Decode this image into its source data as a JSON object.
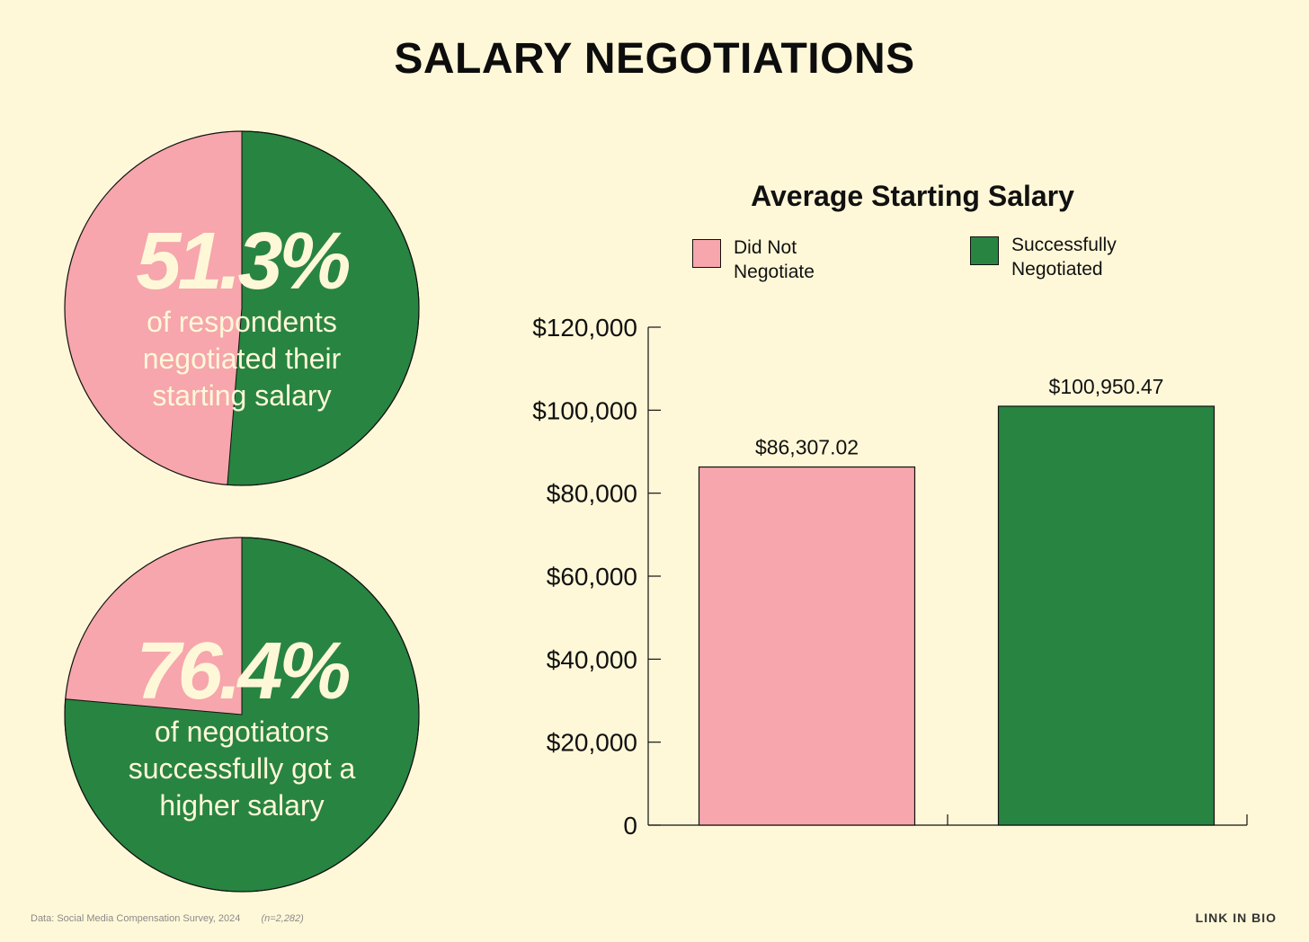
{
  "title": "SALARY NEGOTIATIONS",
  "colors": {
    "background": "#FFF8D8",
    "pink": "#F6A6AC",
    "green": "#288441",
    "text_on_pie": "#FFF8D8"
  },
  "pies": [
    {
      "big": "51.3%",
      "caption_lines": [
        "of respondents",
        "negotiated their",
        "starting salary"
      ],
      "green_share": 0.513
    },
    {
      "big": "76.4%",
      "caption_lines": [
        "of negotiators",
        "successfully got a",
        "higher salary"
      ],
      "green_share": 0.764
    }
  ],
  "legend": {
    "did_not": "Did Not Negotiate",
    "negotiated": "Successfully Negotiated"
  },
  "chart_data": {
    "type": "bar",
    "title": "Average Starting Salary",
    "categories": [
      "Did Not Negotiate",
      "Successfully Negotiated"
    ],
    "values": [
      86307.02,
      100950.47
    ],
    "value_labels": [
      "$86,307.02",
      "$100,950.47"
    ],
    "colors": [
      "#F6A6AC",
      "#288441"
    ],
    "ylim": [
      0,
      120000
    ],
    "yticks": [
      0,
      20000,
      40000,
      60000,
      80000,
      100000,
      120000
    ],
    "ytick_labels": [
      "0",
      "$20,000",
      "$40,000",
      "$60,000",
      "$80,000",
      "$100,000",
      "$120,000"
    ],
    "legend_position": "top",
    "grid": false
  },
  "footer": {
    "source": "Data: Social Media Compensation Survey, 2024",
    "n": "(n=2,282)",
    "brand": "LINK IN BIO"
  }
}
